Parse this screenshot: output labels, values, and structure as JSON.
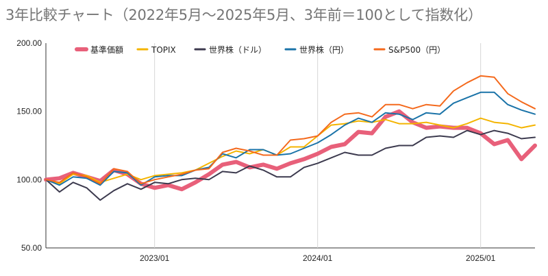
{
  "title": "3年比較チャート（2022年5月〜2025年5月、3年前＝100として指数化）",
  "chart_data": {
    "type": "line",
    "x_labels": [
      "2022-05",
      "2022-06",
      "2022-07",
      "2022-08",
      "2022-09",
      "2022-10",
      "2022-11",
      "2022-12",
      "2023-01",
      "2023-02",
      "2023-03",
      "2023-04",
      "2023-05",
      "2023-06",
      "2023-07",
      "2023-08",
      "2023-09",
      "2023-10",
      "2023-11",
      "2023-12",
      "2024-01",
      "2024-02",
      "2024-03",
      "2024-04",
      "2024-05",
      "2024-06",
      "2024-07",
      "2024-08",
      "2024-09",
      "2024-10",
      "2024-11",
      "2024-12",
      "2025-01",
      "2025-02",
      "2025-03",
      "2025-04",
      "2025-05"
    ],
    "x_ticks": [
      {
        "index": 8,
        "label": "2023/01"
      },
      {
        "index": 20,
        "label": "2024/01"
      },
      {
        "index": 32,
        "label": "2025/01"
      }
    ],
    "ylim": [
      50,
      200
    ],
    "y_ticks": [
      "50.00",
      "100.00",
      "150.00",
      "200.00"
    ],
    "grid": "vertical at year ticks",
    "legend_position": "top",
    "series": [
      {
        "name": "基準価額",
        "color": "#e8607a",
        "values": [
          100,
          101,
          105,
          102,
          99,
          107,
          104,
          97,
          94,
          96,
          93,
          98,
          104,
          111,
          113,
          109,
          111,
          108,
          112,
          115,
          119,
          124,
          126,
          135,
          134,
          146,
          150,
          142,
          138,
          139,
          138,
          138,
          134,
          126,
          129,
          115,
          125
        ]
      },
      {
        "name": "TOPIX",
        "color": "#f4b400",
        "values": [
          100,
          97,
          104,
          103,
          98,
          101,
          104,
          100,
          103,
          104,
          105,
          107,
          112,
          117,
          121,
          119,
          122,
          118,
          124,
          124,
          132,
          140,
          141,
          143,
          142,
          144,
          141,
          141,
          142,
          140,
          138,
          141,
          145,
          142,
          141,
          138,
          140
        ]
      },
      {
        "name": "世界株（ドル）",
        "color": "#3c3a4e",
        "values": [
          100,
          91,
          98,
          94,
          85,
          92,
          97,
          93,
          98,
          97,
          100,
          101,
          100,
          106,
          105,
          110,
          107,
          102,
          102,
          109,
          112,
          116,
          120,
          118,
          118,
          123,
          125,
          125,
          131,
          132,
          131,
          136,
          133,
          136,
          134,
          130,
          131
        ]
      },
      {
        "name": "世界株（円）",
        "color": "#1a73a8",
        "values": [
          100,
          96,
          102,
          101,
          96,
          106,
          105,
          96,
          102,
          103,
          103,
          107,
          109,
          119,
          116,
          122,
          122,
          118,
          119,
          123,
          127,
          133,
          140,
          145,
          142,
          149,
          148,
          144,
          149,
          148,
          156,
          160,
          164,
          164,
          155,
          151,
          148
        ]
      },
      {
        "name": "S&P500（円）",
        "color": "#f4691c",
        "values": [
          100,
          98,
          105,
          102,
          97,
          108,
          106,
          97,
          100,
          102,
          104,
          107,
          108,
          120,
          123,
          121,
          118,
          118,
          129,
          130,
          132,
          142,
          148,
          149,
          146,
          155,
          155,
          152,
          155,
          154,
          165,
          171,
          176,
          175,
          163,
          157,
          152
        ]
      }
    ]
  }
}
